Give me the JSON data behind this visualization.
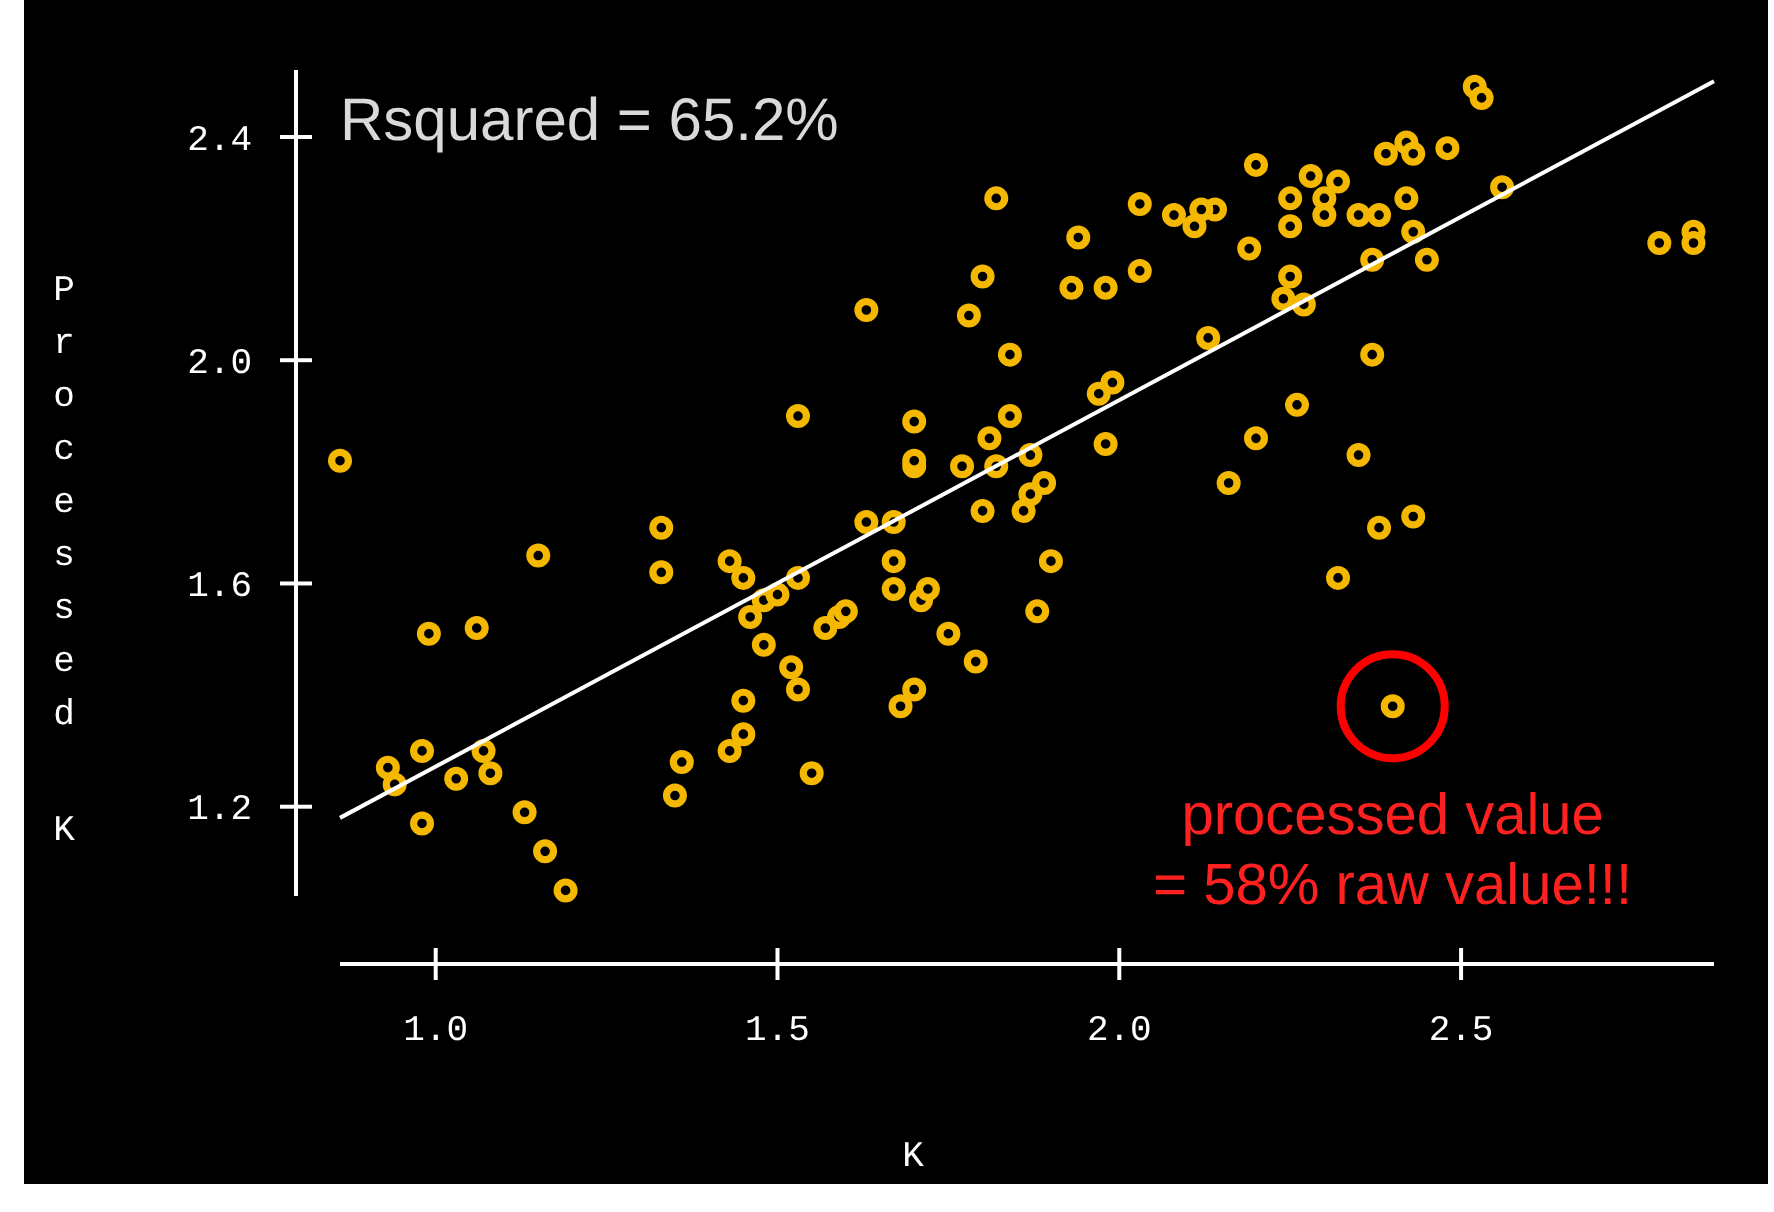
{
  "chart_data": {
    "type": "scatter",
    "xlabel": "K",
    "ylabel": "Processed K",
    "xlim": [
      0.86,
      2.87
    ],
    "ylim": [
      1.04,
      2.52
    ],
    "xticks": [
      {
        "value": 1,
        "label": "1.0"
      },
      1.5,
      {
        "value": 2,
        "label": "2.0"
      },
      2.5
    ],
    "yticks": [
      1.2,
      1.6,
      {
        "value": 2,
        "label": "2.0"
      },
      2.4
    ],
    "grid": false,
    "annotations": [
      "Rsquared = 65.2%",
      {
        "text": "processed value\n= 58% raw value!!!",
        "x": 2.4,
        "y": 1.38
      }
    ],
    "series": [
      {
        "marker": "circle",
        "color": "#f5b800",
        "x": [
          0.86,
          0.99,
          1.06,
          0.93,
          0.94,
          0.98,
          0.98,
          1.03,
          1.07,
          1.08,
          1.13,
          1.16,
          1.19,
          1.15,
          1.33,
          1.33,
          1.35,
          1.36,
          1.43,
          1.45,
          1.46,
          1.48,
          1.5,
          1.53,
          1.48,
          1.52,
          1.53,
          1.45,
          1.45,
          1.43,
          1.55,
          1.63,
          1.67,
          1.67,
          1.67,
          1.71,
          1.72,
          1.57,
          1.59,
          1.6,
          1.75,
          1.79,
          1.7,
          1.68,
          1.8,
          1.86,
          1.87,
          1.88,
          1.77,
          1.7,
          1.82,
          1.82,
          1.8,
          1.63,
          1.78,
          1.84,
          1.53,
          1.7,
          1.7,
          1.84,
          1.81,
          1.87,
          2.52,
          2.53,
          2.2,
          2.03,
          2.08,
          2.11,
          2.14,
          2.12,
          1.94,
          1.93,
          1.98,
          2.03,
          2.19,
          2.25,
          2.28,
          2.3,
          2.32,
          2.3,
          2.25,
          2.35,
          2.38,
          2.39,
          2.42,
          2.43,
          2.48,
          2.42,
          2.43,
          2.45,
          2.37,
          2.25,
          2.24,
          2.27,
          2.56,
          2.79,
          2.84,
          2.84,
          2.13,
          1.97,
          1.99,
          2.37,
          2.26,
          1.98,
          2.2,
          2.35,
          2.16,
          1.89,
          2.38,
          2.43,
          2.32,
          1.9,
          2.4
        ],
        "values": [
          1.82,
          1.51,
          1.52,
          1.27,
          1.24,
          1.3,
          1.17,
          1.25,
          1.3,
          1.26,
          1.19,
          1.12,
          1.05,
          1.65,
          1.7,
          1.62,
          1.22,
          1.28,
          1.64,
          1.61,
          1.54,
          1.57,
          1.58,
          1.61,
          1.49,
          1.45,
          1.41,
          1.39,
          1.33,
          1.3,
          1.26,
          1.71,
          1.71,
          1.64,
          1.59,
          1.57,
          1.59,
          1.52,
          1.54,
          1.55,
          1.51,
          1.46,
          1.41,
          1.38,
          1.73,
          1.73,
          1.76,
          1.55,
          1.81,
          1.81,
          1.81,
          2.29,
          2.15,
          2.09,
          2.08,
          2.01,
          1.9,
          1.89,
          1.82,
          1.9,
          1.86,
          1.83,
          2.49,
          2.47,
          2.35,
          2.28,
          2.26,
          2.24,
          2.27,
          2.27,
          2.22,
          2.13,
          2.13,
          2.16,
          2.2,
          2.29,
          2.33,
          2.29,
          2.32,
          2.26,
          2.24,
          2.26,
          2.26,
          2.37,
          2.39,
          2.37,
          2.38,
          2.29,
          2.23,
          2.18,
          2.18,
          2.15,
          2.11,
          2.1,
          2.31,
          2.21,
          2.23,
          2.21,
          2.04,
          1.94,
          1.96,
          2.01,
          1.92,
          1.85,
          1.86,
          1.83,
          1.78,
          1.78,
          1.7,
          1.72,
          1.61,
          1.64,
          1.38
        ]
      },
      {
        "type": "line",
        "color": "#ffffff",
        "x": [
          0.86,
          2.87
        ],
        "values": [
          1.18,
          2.5
        ]
      }
    ]
  }
}
